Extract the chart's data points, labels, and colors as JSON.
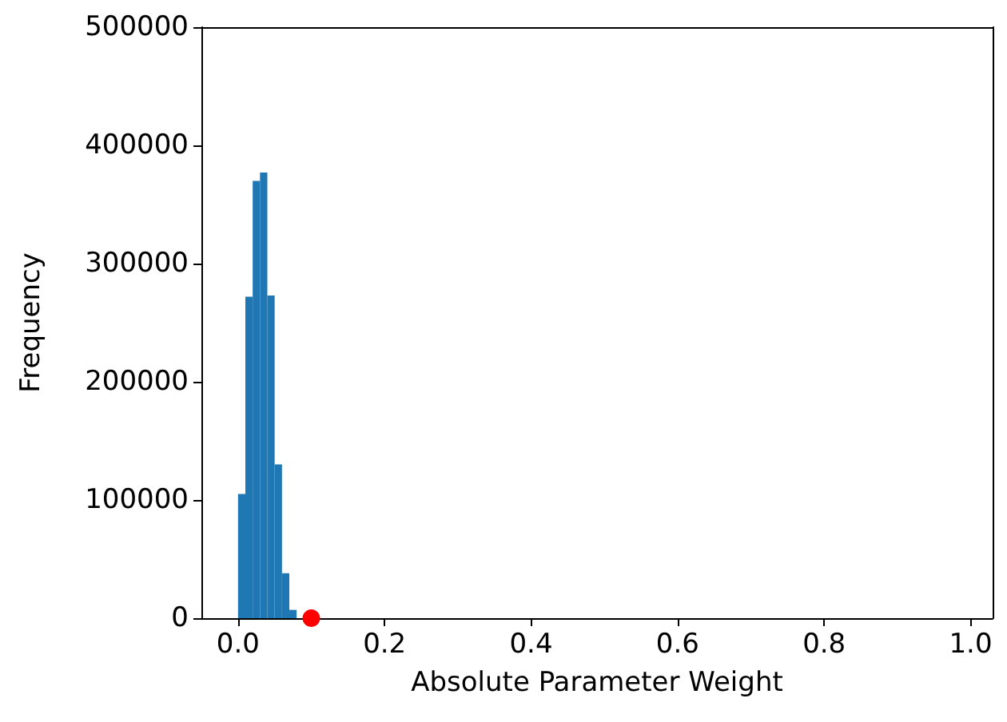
{
  "chart_data": {
    "type": "histogram",
    "xlabel": "Absolute Parameter Weight",
    "ylabel": "Frequency",
    "xlim": [
      -0.05,
      1.03
    ],
    "xticks": [
      {
        "value": 0,
        "label": "0.0"
      },
      {
        "value": 0.2,
        "label": "0.2"
      },
      {
        "value": 0.4,
        "label": "0.4"
      },
      {
        "value": 0.6,
        "label": "0.6"
      },
      {
        "value": 0.8,
        "label": "0.8"
      },
      {
        "value": 1,
        "label": "1.0"
      }
    ],
    "ylim": [
      0,
      500000
    ],
    "yticks": [
      0,
      100000,
      200000,
      300000,
      400000,
      500000
    ],
    "grid": false,
    "marker": "circle",
    "series": [
      {
        "color": "#1f77b4",
        "bins": [
          0,
          0.01,
          0.02,
          0.03,
          0.04,
          0.05,
          0.06,
          0.07,
          0.08
        ],
        "values": [
          105000,
          272000,
          370000,
          377000,
          273000,
          130000,
          38000,
          7000
        ]
      },
      {
        "type": "scatter",
        "color": "#ff0000",
        "x": [
          0.1
        ],
        "values": [
          0
        ]
      }
    ]
  }
}
